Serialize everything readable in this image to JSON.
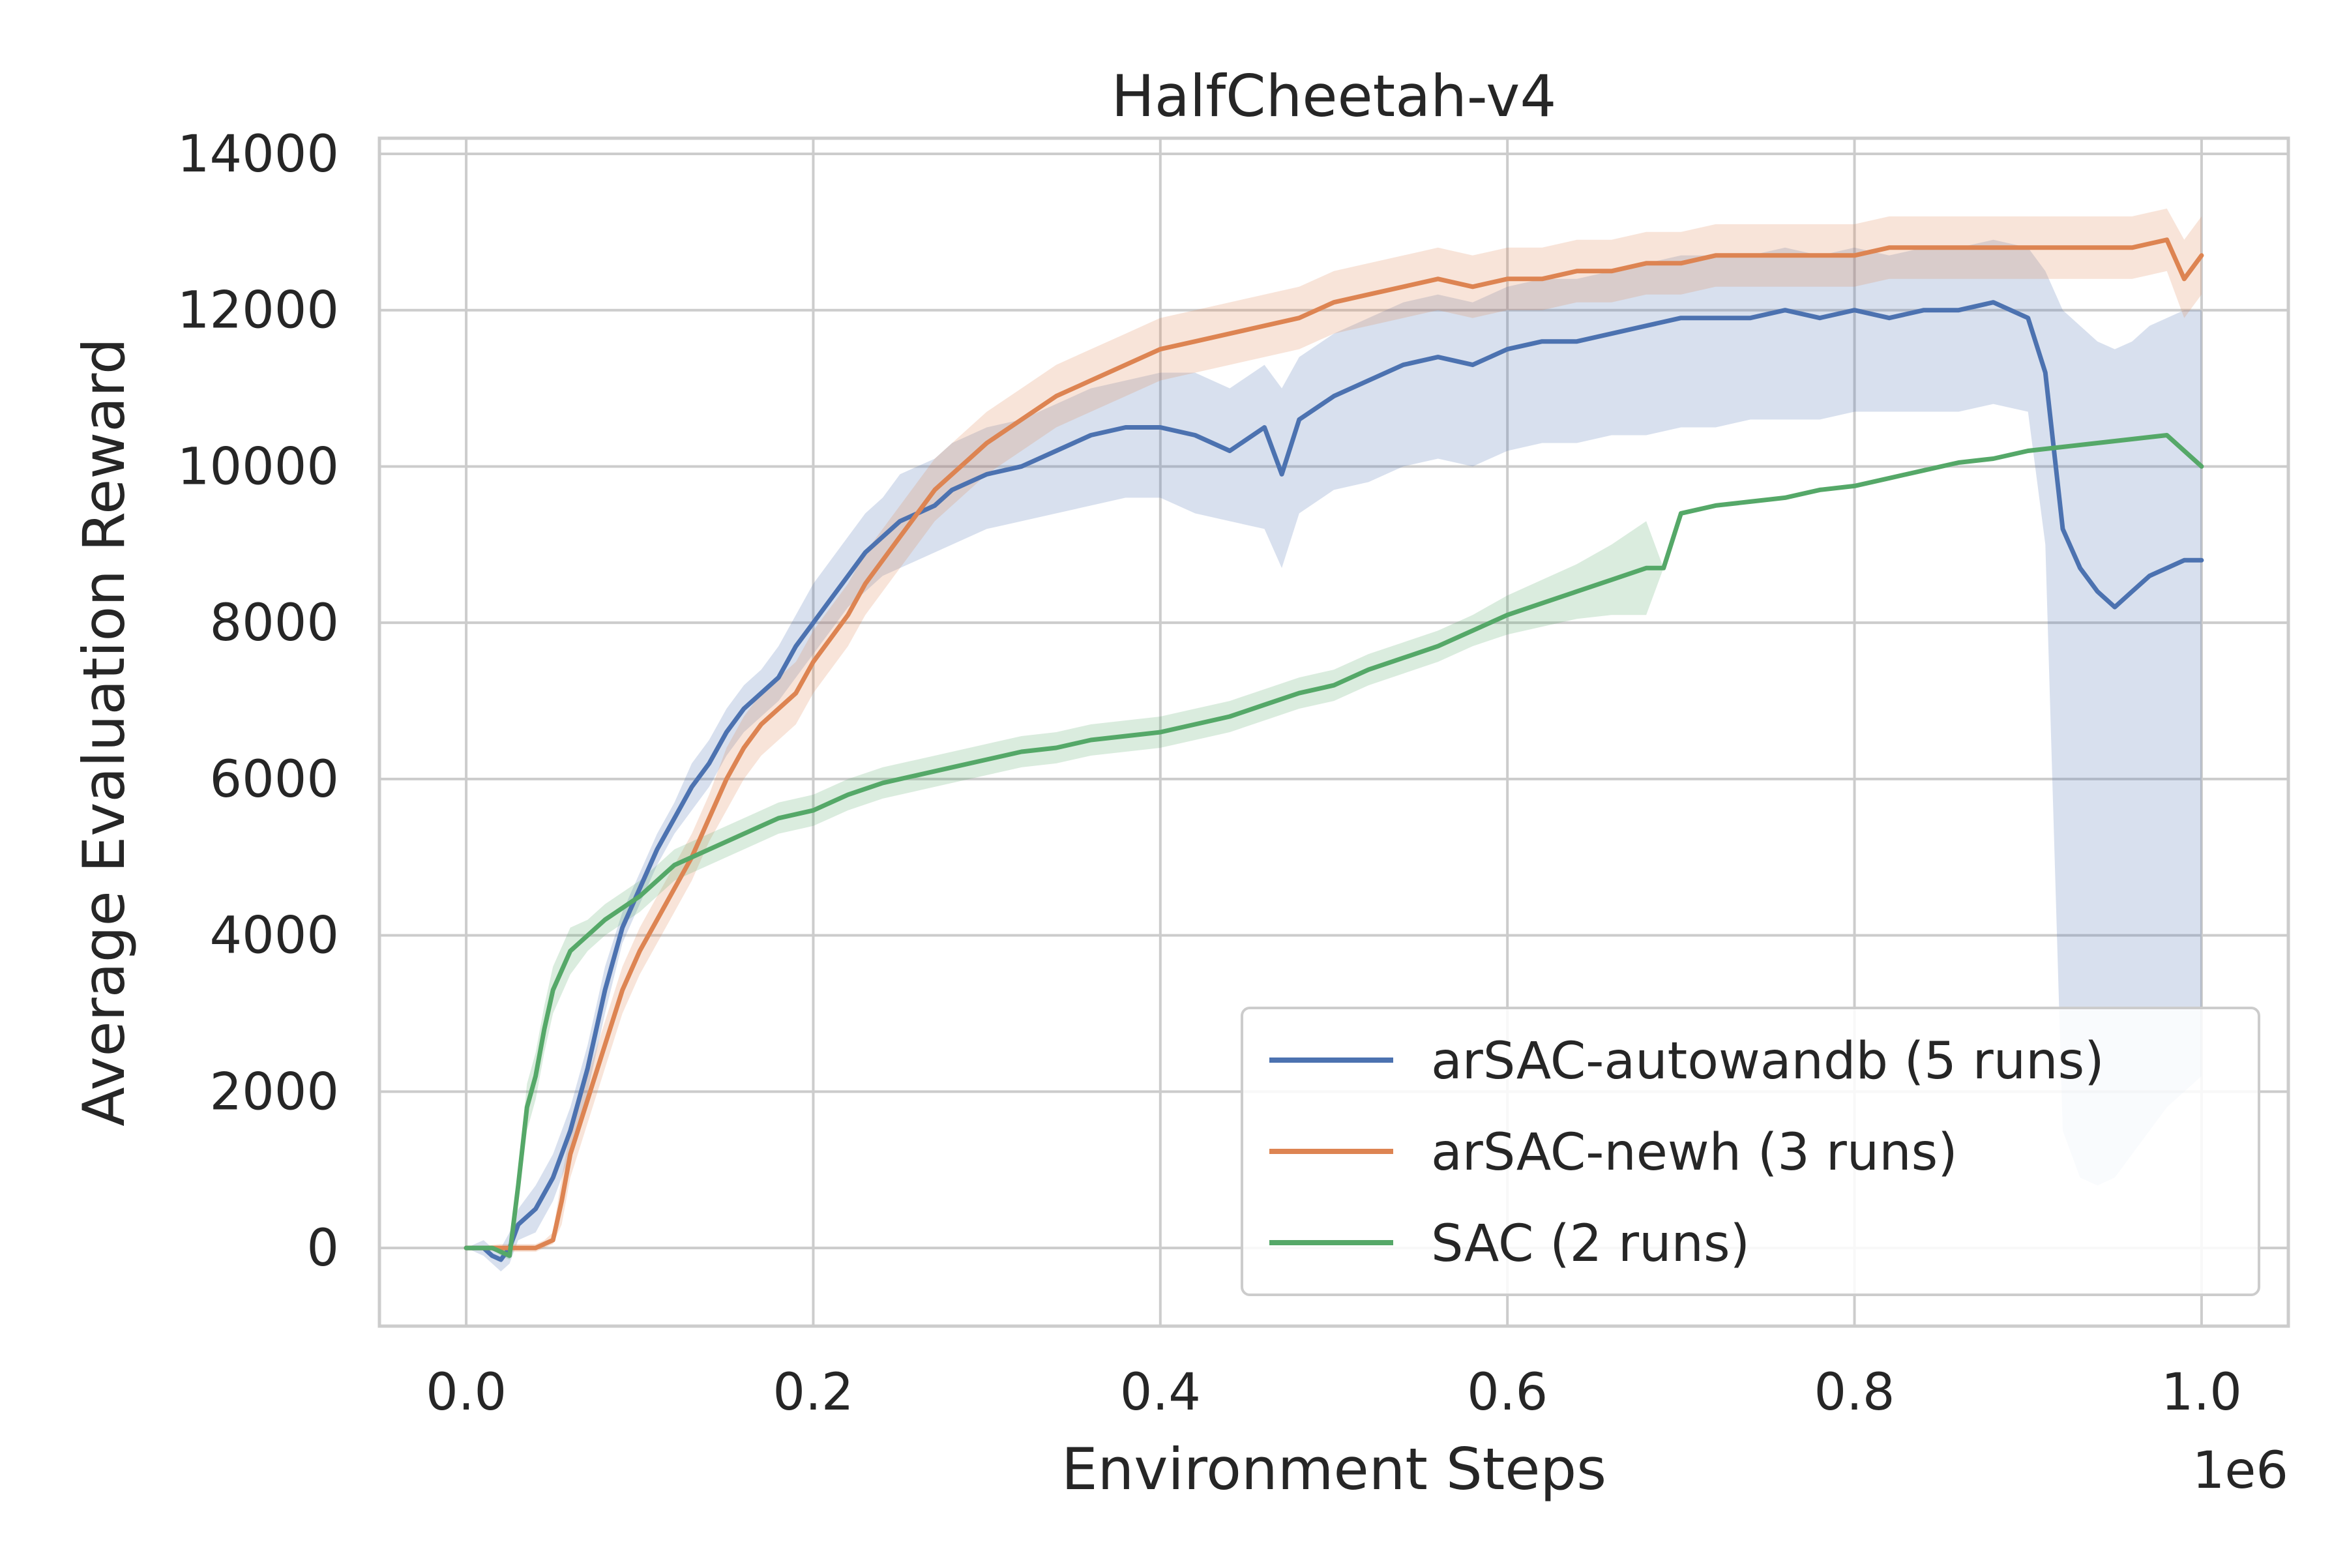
{
  "chart_data": {
    "type": "line",
    "title": "HalfCheetah-v4",
    "xlabel": "Environment Steps",
    "ylabel": "Average Evaluation Reward",
    "x_offset_label": "1e6",
    "xlim": [
      -0.05,
      1.05
    ],
    "ylim": [
      -1000,
      14200
    ],
    "x_ticks": [
      0.0,
      0.2,
      0.4,
      0.6,
      0.8,
      1.0
    ],
    "x_tick_labels": [
      "0.0",
      "0.2",
      "0.4",
      "0.6",
      "0.8",
      "1.0"
    ],
    "y_ticks": [
      0,
      2000,
      4000,
      6000,
      8000,
      10000,
      12000,
      14000
    ],
    "y_tick_labels": [
      "0",
      "2000",
      "4000",
      "6000",
      "8000",
      "10000",
      "12000",
      "14000"
    ],
    "grid": true,
    "legend_position": "lower-right",
    "series": [
      {
        "name": "arSAC-autowandb (5 runs)",
        "color": "#4c72b0",
        "x": [
          0,
          0.01,
          0.015,
          0.02,
          0.025,
          0.03,
          0.04,
          0.05,
          0.06,
          0.07,
          0.08,
          0.09,
          0.1,
          0.11,
          0.12,
          0.13,
          0.14,
          0.15,
          0.16,
          0.17,
          0.18,
          0.19,
          0.2,
          0.21,
          0.22,
          0.23,
          0.24,
          0.25,
          0.26,
          0.27,
          0.28,
          0.29,
          0.3,
          0.32,
          0.34,
          0.36,
          0.38,
          0.4,
          0.42,
          0.44,
          0.46,
          0.47,
          0.48,
          0.5,
          0.52,
          0.54,
          0.56,
          0.58,
          0.6,
          0.62,
          0.64,
          0.66,
          0.68,
          0.7,
          0.72,
          0.74,
          0.76,
          0.78,
          0.8,
          0.82,
          0.84,
          0.86,
          0.88,
          0.9,
          0.91,
          0.92,
          0.93,
          0.94,
          0.95,
          0.96,
          0.97,
          0.98,
          0.99,
          1.0
        ],
        "y": [
          0,
          0,
          -100,
          -150,
          0,
          300,
          500,
          900,
          1500,
          2300,
          3300,
          4100,
          4600,
          5100,
          5500,
          5900,
          6200,
          6600,
          6900,
          7100,
          7300,
          7700,
          8000,
          8300,
          8600,
          8900,
          9100,
          9300,
          9400,
          9500,
          9700,
          9800,
          9900,
          10000,
          10200,
          10400,
          10500,
          10500,
          10400,
          10200,
          10500,
          9900,
          10600,
          10900,
          11100,
          11300,
          11400,
          11300,
          11500,
          11600,
          11600,
          11700,
          11800,
          11900,
          11900,
          11900,
          12000,
          11900,
          12000,
          11900,
          12000,
          12000,
          12100,
          11900,
          11200,
          9200,
          8700,
          8400,
          8200,
          8400,
          8600,
          8700,
          8800,
          8800
        ],
        "band_low": [
          0,
          -100,
          -200,
          -300,
          -200,
          100,
          200,
          600,
          1200,
          2000,
          3000,
          3900,
          4400,
          4900,
          5300,
          5600,
          5900,
          6300,
          6600,
          6800,
          7000,
          7300,
          7600,
          7900,
          8200,
          8400,
          8600,
          8700,
          8800,
          8900,
          9000,
          9100,
          9200,
          9300,
          9400,
          9500,
          9600,
          9600,
          9400,
          9300,
          9200,
          8700,
          9400,
          9700,
          9800,
          10000,
          10100,
          10000,
          10200,
          10300,
          10300,
          10400,
          10400,
          10500,
          10500,
          10600,
          10600,
          10600,
          10700,
          10700,
          10700,
          10700,
          10800,
          10700,
          9000,
          1500,
          900,
          800,
          900,
          1200,
          1500,
          1800,
          2000,
          2200
        ],
        "band_high": [
          0,
          100,
          0,
          0,
          200,
          500,
          800,
          1200,
          1800,
          2600,
          3600,
          4300,
          4800,
          5300,
          5700,
          6200,
          6500,
          6900,
          7200,
          7400,
          7700,
          8100,
          8500,
          8800,
          9100,
          9400,
          9600,
          9900,
          10000,
          10100,
          10300,
          10400,
          10500,
          10600,
          10800,
          11000,
          11100,
          11200,
          11200,
          11000,
          11300,
          11000,
          11400,
          11700,
          11900,
          12100,
          12200,
          12100,
          12300,
          12400,
          12400,
          12500,
          12600,
          12700,
          12700,
          12700,
          12800,
          12700,
          12800,
          12700,
          12800,
          12800,
          12900,
          12800,
          12500,
          12000,
          11800,
          11600,
          11500,
          11600,
          11800,
          11900,
          12000,
          12000
        ]
      },
      {
        "name": "arSAC-newh (3 runs)",
        "color": "#dd8452",
        "x": [
          0,
          0.02,
          0.03,
          0.04,
          0.045,
          0.05,
          0.055,
          0.06,
          0.07,
          0.08,
          0.09,
          0.1,
          0.11,
          0.12,
          0.13,
          0.14,
          0.15,
          0.16,
          0.17,
          0.18,
          0.19,
          0.2,
          0.21,
          0.22,
          0.23,
          0.24,
          0.25,
          0.26,
          0.27,
          0.28,
          0.29,
          0.3,
          0.32,
          0.34,
          0.36,
          0.38,
          0.4,
          0.42,
          0.44,
          0.46,
          0.48,
          0.5,
          0.52,
          0.54,
          0.56,
          0.58,
          0.6,
          0.62,
          0.64,
          0.66,
          0.68,
          0.7,
          0.72,
          0.74,
          0.76,
          0.78,
          0.8,
          0.82,
          0.84,
          0.86,
          0.88,
          0.9,
          0.92,
          0.94,
          0.96,
          0.98,
          0.99,
          1.0
        ],
        "y": [
          0,
          0,
          0,
          0,
          50,
          100,
          600,
          1200,
          1900,
          2600,
          3300,
          3800,
          4200,
          4600,
          5000,
          5500,
          6000,
          6400,
          6700,
          6900,
          7100,
          7500,
          7800,
          8100,
          8500,
          8800,
          9100,
          9400,
          9700,
          9900,
          10100,
          10300,
          10600,
          10900,
          11100,
          11300,
          11500,
          11600,
          11700,
          11800,
          11900,
          12100,
          12200,
          12300,
          12400,
          12300,
          12400,
          12400,
          12500,
          12500,
          12600,
          12600,
          12700,
          12700,
          12700,
          12700,
          12700,
          12800,
          12800,
          12800,
          12800,
          12800,
          12800,
          12800,
          12800,
          12900,
          12400,
          12700
        ],
        "band_low": [
          0,
          -50,
          -50,
          -50,
          0,
          50,
          300,
          900,
          1600,
          2300,
          3000,
          3500,
          3900,
          4300,
          4700,
          5200,
          5600,
          6000,
          6300,
          6500,
          6700,
          7100,
          7400,
          7700,
          8100,
          8400,
          8700,
          9000,
          9300,
          9500,
          9700,
          9900,
          10200,
          10500,
          10700,
          10900,
          11100,
          11200,
          11300,
          11400,
          11500,
          11700,
          11800,
          11900,
          12000,
          11900,
          12000,
          12000,
          12100,
          12100,
          12200,
          12200,
          12300,
          12300,
          12300,
          12300,
          12300,
          12400,
          12400,
          12400,
          12400,
          12400,
          12400,
          12400,
          12400,
          12500,
          11900,
          12200
        ],
        "band_high": [
          0,
          50,
          50,
          50,
          100,
          200,
          900,
          1500,
          2200,
          2900,
          3600,
          4100,
          4500,
          4900,
          5300,
          5800,
          6400,
          6800,
          7100,
          7300,
          7500,
          7900,
          8200,
          8500,
          8900,
          9200,
          9500,
          9800,
          10100,
          10300,
          10500,
          10700,
          11000,
          11300,
          11500,
          11700,
          11900,
          12000,
          12100,
          12200,
          12300,
          12500,
          12600,
          12700,
          12800,
          12700,
          12800,
          12800,
          12900,
          12900,
          13000,
          13000,
          13100,
          13100,
          13100,
          13100,
          13100,
          13200,
          13200,
          13200,
          13200,
          13200,
          13200,
          13200,
          13200,
          13300,
          12900,
          13200
        ]
      },
      {
        "name": "SAC (2 runs)",
        "color": "#55a868",
        "x": [
          0,
          0.01,
          0.015,
          0.02,
          0.025,
          0.03,
          0.035,
          0.04,
          0.045,
          0.05,
          0.06,
          0.07,
          0.08,
          0.1,
          0.12,
          0.14,
          0.16,
          0.18,
          0.2,
          0.22,
          0.24,
          0.26,
          0.28,
          0.3,
          0.32,
          0.34,
          0.36,
          0.38,
          0.4,
          0.42,
          0.44,
          0.46,
          0.48,
          0.5,
          0.52,
          0.54,
          0.56,
          0.58,
          0.6,
          0.62,
          0.64,
          0.66,
          0.68,
          0.69,
          0.7,
          0.72,
          0.74,
          0.76,
          0.78,
          0.8,
          0.82,
          0.84,
          0.86,
          0.88,
          0.9,
          0.92,
          0.94,
          0.96,
          0.98,
          1.0
        ],
        "y": [
          0,
          0,
          0,
          -50,
          -100,
          800,
          1800,
          2200,
          2800,
          3300,
          3800,
          4000,
          4200,
          4500,
          4900,
          5100,
          5300,
          5500,
          5600,
          5800,
          5950,
          6050,
          6150,
          6250,
          6350,
          6400,
          6500,
          6550,
          6600,
          6700,
          6800,
          6950,
          7100,
          7200,
          7400,
          7550,
          7700,
          7900,
          8100,
          8250,
          8400,
          8550,
          8700,
          8700,
          9400,
          9500,
          9550,
          9600,
          9700,
          9750,
          9850,
          9950,
          10050,
          10100,
          10200,
          10250,
          10300,
          10350,
          10400,
          10000
        ],
        "band_low": [
          0,
          0,
          0,
          -100,
          -150,
          600,
          1500,
          1900,
          2500,
          3000,
          3500,
          3800,
          4000,
          4300,
          4700,
          4900,
          5100,
          5300,
          5400,
          5600,
          5750,
          5850,
          5950,
          6050,
          6150,
          6200,
          6300,
          6350,
          6400,
          6500,
          6600,
          6750,
          6900,
          7000,
          7200,
          7350,
          7500,
          7700,
          7850,
          7950,
          8050,
          8100,
          8100,
          8700,
          9400,
          9500,
          9550,
          9600,
          9700,
          9750,
          9850,
          9950,
          10050,
          10100,
          10200,
          10250,
          10300,
          10350,
          10400,
          10000
        ],
        "band_high": [
          0,
          0,
          0,
          0,
          -50,
          1000,
          2100,
          2500,
          3100,
          3600,
          4100,
          4200,
          4400,
          4700,
          5100,
          5300,
          5500,
          5700,
          5800,
          6000,
          6150,
          6250,
          6350,
          6450,
          6550,
          6600,
          6700,
          6750,
          6800,
          6900,
          7000,
          7150,
          7300,
          7400,
          7600,
          7750,
          7900,
          8100,
          8350,
          8550,
          8750,
          9000,
          9300,
          8700,
          9400,
          9500,
          9550,
          9600,
          9700,
          9750,
          9850,
          9950,
          10050,
          10100,
          10200,
          10250,
          10300,
          10350,
          10400,
          10000
        ]
      }
    ]
  }
}
